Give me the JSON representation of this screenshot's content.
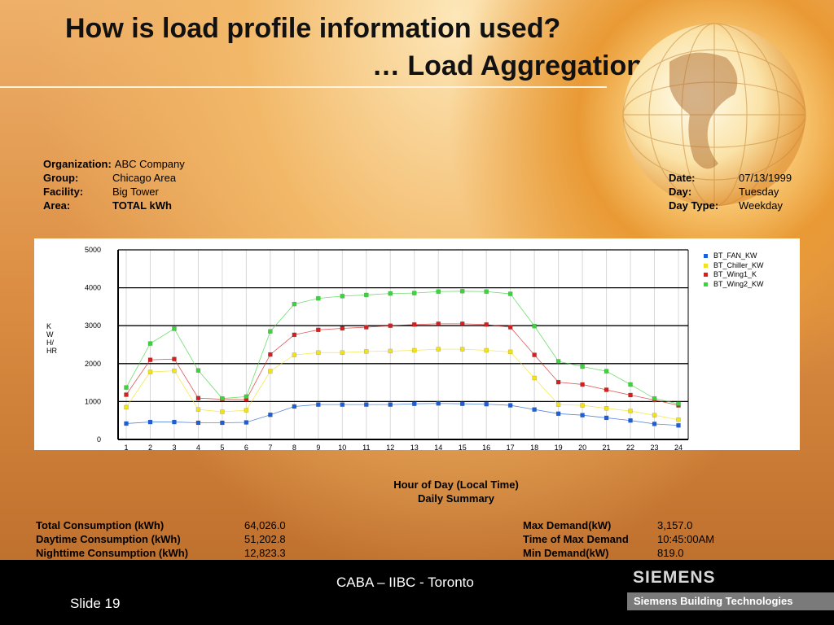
{
  "title": {
    "line1": "How is load profile information used?",
    "line2": "… Load Aggregation"
  },
  "info": {
    "organization_label": "Organization:",
    "organization": "ABC Company",
    "group_label": "Group:",
    "group": "Chicago Area",
    "facility_label": "Facility:",
    "facility": "Big Tower",
    "area_label": "Area:",
    "area": "TOTAL kWh",
    "date_label": "Date:",
    "date": "07/13/1999",
    "day_label": "Day:",
    "day": "Tuesday",
    "day_type_label": "Day Type:",
    "day_type": "Weekday"
  },
  "chart_data": {
    "type": "line",
    "x": [
      1,
      2,
      3,
      4,
      5,
      6,
      7,
      8,
      9,
      10,
      11,
      12,
      13,
      14,
      15,
      16,
      17,
      18,
      19,
      20,
      21,
      22,
      23,
      24
    ],
    "ylabel_lines": [
      "K",
      "W",
      "H/",
      "HR"
    ],
    "ylim": [
      0,
      5000
    ],
    "yticks": [
      0,
      1000,
      2000,
      3000,
      4000,
      5000
    ],
    "grid": true,
    "legend_position": "top-right",
    "xlabel": "Hour of Day (Local Time)",
    "subtitle": "Daily Summary",
    "series": [
      {
        "name": "BT_FAN_KW",
        "color": "#1f5fd6",
        "values": [
          420,
          460,
          460,
          440,
          440,
          450,
          650,
          870,
          920,
          920,
          920,
          920,
          940,
          950,
          940,
          930,
          900,
          790,
          680,
          640,
          570,
          500,
          410,
          370
        ]
      },
      {
        "name": "BT_Chiller_KW",
        "color": "#f2e21a",
        "values": [
          850,
          1780,
          1810,
          790,
          730,
          770,
          1800,
          2230,
          2290,
          2290,
          2320,
          2330,
          2350,
          2380,
          2380,
          2350,
          2310,
          1620,
          920,
          900,
          820,
          750,
          640,
          520
        ]
      },
      {
        "name": "BT_Wing1_K",
        "color": "#d42020",
        "values": [
          1180,
          2100,
          2120,
          1090,
          1060,
          1050,
          2240,
          2760,
          2890,
          2930,
          2960,
          3000,
          3030,
          3050,
          3050,
          3030,
          2960,
          2230,
          1510,
          1450,
          1310,
          1170,
          1040,
          900
        ]
      },
      {
        "name": "BT_Wing2_KW",
        "color": "#3fd23f",
        "values": [
          1370,
          2530,
          2920,
          1820,
          1080,
          1130,
          2850,
          3570,
          3720,
          3780,
          3810,
          3850,
          3860,
          3900,
          3910,
          3900,
          3840,
          2990,
          2060,
          1920,
          1800,
          1450,
          1080,
          940
        ]
      }
    ]
  },
  "summary": {
    "total_label": "Total Consumption (kWh)",
    "total": "64,026.0",
    "daytime_label": "Daytime Consumption (kWh)",
    "daytime": "51,202.8",
    "nighttime_label": "Nighttime Consumption (kWh)",
    "nighttime": "12,823.3",
    "max_label": "Max Demand(kW)",
    "max": "3,157.0",
    "time_max_label": "Time of Max Demand",
    "time_max": "10:45:00AM",
    "min_label": "Min Demand(kW)",
    "min": "819.0"
  },
  "footer": {
    "center": "CABA – IIBC - Toronto",
    "slide": "Slide 19",
    "logo": "SIEMENS",
    "subtitle": "Siemens Building Technologies"
  }
}
